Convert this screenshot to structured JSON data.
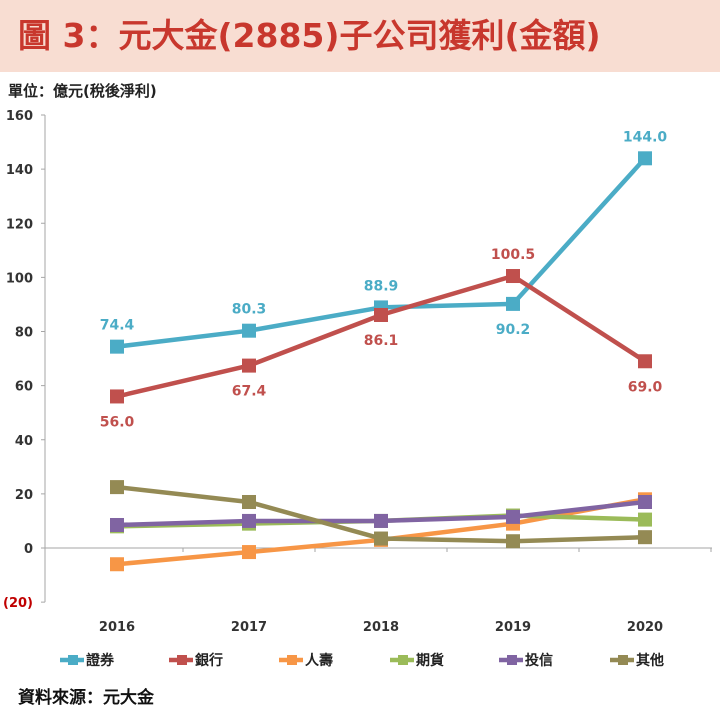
{
  "header": {
    "title": "圖 3：元大金(2885)子公司獲利(金額)"
  },
  "unit_label": "單位：億元(稅後淨利)",
  "source_label": "資料來源：元大金",
  "chart_data": {
    "type": "line",
    "categories": [
      "2016",
      "2017",
      "2018",
      "2019",
      "2020"
    ],
    "ylim": [
      -20,
      160
    ],
    "ytick_values": [
      -20,
      0,
      20,
      40,
      60,
      80,
      100,
      120,
      140,
      160
    ],
    "ytick_labels": [
      "(20)",
      "0",
      "20",
      "40",
      "60",
      "80",
      "100",
      "120",
      "140",
      "160"
    ],
    "grid": false,
    "legend_position": "bottom",
    "series": [
      {
        "name": "證券",
        "color": "#4bacc6",
        "values": [
          74.4,
          80.3,
          88.9,
          90.2,
          144.0
        ],
        "labels": [
          "74.4",
          "80.3",
          "88.9",
          "90.2",
          "144.0"
        ],
        "label_pos": [
          "above",
          "above",
          "above",
          "below",
          "above"
        ]
      },
      {
        "name": "銀行",
        "color": "#c0504d",
        "values": [
          56.0,
          67.4,
          86.1,
          100.5,
          69.0
        ],
        "labels": [
          "56.0",
          "67.4",
          "86.1",
          "100.5",
          "69.0"
        ],
        "label_pos": [
          "below",
          "below",
          "below",
          "above",
          "below"
        ]
      },
      {
        "name": "人壽",
        "color": "#f79646",
        "values": [
          -6.0,
          -1.5,
          3.0,
          9.0,
          18.0
        ]
      },
      {
        "name": "期貨",
        "color": "#9bbb59",
        "values": [
          8.0,
          9.0,
          10.0,
          12.0,
          10.5
        ]
      },
      {
        "name": "投信",
        "color": "#8064a2",
        "values": [
          8.5,
          10.0,
          10.0,
          11.5,
          17.0
        ]
      },
      {
        "name": "其他",
        "color": "#948a54",
        "values": [
          22.5,
          17.0,
          3.5,
          2.5,
          4.0
        ]
      }
    ]
  }
}
